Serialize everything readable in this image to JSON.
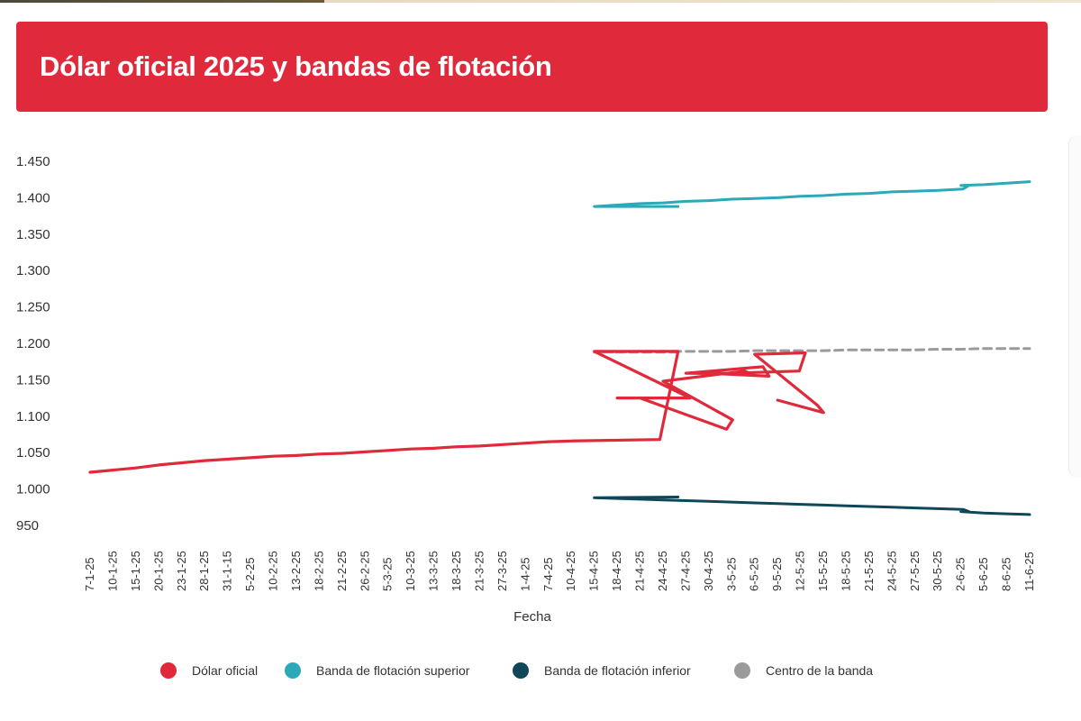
{
  "header": {
    "title": "Dólar oficial 2025 y bandas de flotación"
  },
  "chart_data": {
    "type": "line",
    "title": "Dólar oficial 2025 y bandas de flotación",
    "xlabel": "Fecha",
    "ylabel": "",
    "ylim": [
      950,
      1450
    ],
    "y_ticks": [
      "950",
      "1.000",
      "1.050",
      "1.100",
      "1.150",
      "1.200",
      "1.250",
      "1.300",
      "1.350",
      "1.400",
      "1.450"
    ],
    "x_ticks": [
      "7-1-25",
      "10-1-25",
      "15-1-25",
      "20-1-25",
      "23-1-25",
      "28-1-25",
      "31-1-15",
      "5-2-25",
      "10-2-25",
      "13-2-25",
      "18-2-25",
      "21-2-25",
      "26-2-25",
      "5-3-25",
      "10-3-25",
      "13-3-25",
      "18-3-25",
      "21-3-25",
      "27-3-25",
      "1-4-25",
      "7-4-25",
      "10-4-25",
      "15-4-25",
      "18-4-25",
      "21-4-25",
      "24-4-25",
      "27-4-25",
      "30-4-25",
      "3-5-25",
      "6-5-25",
      "9-5-25",
      "12-5-25",
      "15-5-25",
      "18-5-25",
      "21-5-25",
      "24-5-25",
      "27-5-25",
      "30-5-25",
      "2-6-25",
      "5-6-25",
      "8-6-25",
      "11-6-25"
    ],
    "grid": false,
    "legend_position": "bottom",
    "series": [
      {
        "name": "Dólar oficial",
        "color": "#e02a3c",
        "dashed": false,
        "points": [
          [
            "7-1-25",
            1023
          ],
          [
            "10-1-25",
            1026
          ],
          [
            "15-1-25",
            1029
          ],
          [
            "20-1-25",
            1033
          ],
          [
            "23-1-25",
            1036
          ],
          [
            "28-1-25",
            1039
          ],
          [
            "31-1-15",
            1041
          ],
          [
            "5-2-25",
            1043
          ],
          [
            "10-2-25",
            1045
          ],
          [
            "13-2-25",
            1046
          ],
          [
            "18-2-25",
            1048
          ],
          [
            "21-2-25",
            1049
          ],
          [
            "26-2-25",
            1051
          ],
          [
            "5-3-25",
            1053
          ],
          [
            "10-3-25",
            1055
          ],
          [
            "13-3-25",
            1056
          ],
          [
            "18-3-25",
            1058
          ],
          [
            "21-3-25",
            1059
          ],
          [
            "27-3-25",
            1061
          ],
          [
            "1-4-25",
            1063
          ],
          [
            "7-4-25",
            1065
          ],
          [
            "10-4-25",
            1066
          ],
          [
            "11-4-25",
            1068
          ],
          [
            "14-4-25",
            1189
          ],
          [
            "15-4-25",
            1189
          ],
          [
            "16-4-25",
            1125
          ],
          [
            "18-4-25",
            1125
          ],
          [
            "21-4-25",
            1125
          ],
          [
            "22-4-25",
            1082
          ],
          [
            "23-4-25",
            1095
          ],
          [
            "24-4-25",
            1148
          ],
          [
            "25-4-25",
            1162
          ],
          [
            "26-4-25",
            1158
          ],
          [
            "27-4-25",
            1159
          ],
          [
            "28-4-25",
            1168
          ],
          [
            "29-4-25",
            1155
          ],
          [
            "30-4-25",
            1159
          ],
          [
            "3-5-25",
            1159
          ],
          [
            "4-5-25",
            1162
          ],
          [
            "5-5-25",
            1187
          ],
          [
            "6-5-25",
            1185
          ],
          [
            "7-5-25",
            1115
          ],
          [
            "8-5-25",
            1105
          ],
          [
            "9-5-25",
            1122
          ]
        ]
      },
      {
        "name": "Banda de flotación superior",
        "color": "#2aa9b8",
        "dashed": false,
        "points": [
          [
            "14-4-25",
            1388
          ],
          [
            "15-4-25",
            1388
          ],
          [
            "18-4-25",
            1390
          ],
          [
            "21-4-25",
            1392
          ],
          [
            "24-4-25",
            1393
          ],
          [
            "27-4-25",
            1395
          ],
          [
            "30-4-25",
            1396
          ],
          [
            "3-5-25",
            1398
          ],
          [
            "6-5-25",
            1399
          ],
          [
            "9-5-25",
            1400
          ],
          [
            "12-5-25",
            1402
          ],
          [
            "15-5-25",
            1403
          ],
          [
            "18-5-25",
            1405
          ],
          [
            "21-5-25",
            1406
          ],
          [
            "24-5-25",
            1408
          ],
          [
            "27-5-25",
            1409
          ],
          [
            "30-5-25",
            1410
          ],
          [
            "31-5-25",
            1412
          ],
          [
            "1-6-25",
            1417
          ],
          [
            "2-6-25",
            1417
          ],
          [
            "5-6-25",
            1418
          ],
          [
            "8-6-25",
            1420
          ],
          [
            "11-6-25",
            1422
          ]
        ]
      },
      {
        "name": "Banda de flotación inferior",
        "color": "#0f4758",
        "dashed": false,
        "points": [
          [
            "14-4-25",
            989
          ],
          [
            "15-4-25",
            988
          ],
          [
            "18-4-25",
            987
          ],
          [
            "21-4-25",
            986
          ],
          [
            "24-4-25",
            985
          ],
          [
            "27-4-25",
            984
          ],
          [
            "30-4-25",
            983
          ],
          [
            "3-5-25",
            982
          ],
          [
            "6-5-25",
            981
          ],
          [
            "9-5-25",
            980
          ],
          [
            "12-5-25",
            979
          ],
          [
            "15-5-25",
            978
          ],
          [
            "18-5-25",
            977
          ],
          [
            "21-5-25",
            976
          ],
          [
            "24-5-25",
            975
          ],
          [
            "27-5-25",
            974
          ],
          [
            "30-5-25",
            973
          ],
          [
            "31-5-25",
            972
          ],
          [
            "1-6-25",
            969
          ],
          [
            "2-6-25",
            969
          ],
          [
            "5-6-25",
            967
          ],
          [
            "8-6-25",
            966
          ],
          [
            "11-6-25",
            965
          ]
        ]
      },
      {
        "name": "Centro de la banda",
        "color": "#9a9a9a",
        "dashed": true,
        "points": [
          [
            "14-4-25",
            1188
          ],
          [
            "15-4-25",
            1188
          ],
          [
            "18-4-25",
            1188
          ],
          [
            "21-4-25",
            1189
          ],
          [
            "24-4-25",
            1189
          ],
          [
            "27-4-25",
            1189
          ],
          [
            "30-4-25",
            1189
          ],
          [
            "3-5-25",
            1189
          ],
          [
            "6-5-25",
            1190
          ],
          [
            "9-5-25",
            1190
          ],
          [
            "12-5-25",
            1190
          ],
          [
            "15-5-25",
            1190
          ],
          [
            "18-5-25",
            1191
          ],
          [
            "21-5-25",
            1191
          ],
          [
            "24-5-25",
            1191
          ],
          [
            "27-5-25",
            1191
          ],
          [
            "30-5-25",
            1192
          ],
          [
            "2-6-25",
            1192
          ],
          [
            "5-6-25",
            1193
          ],
          [
            "8-6-25",
            1193
          ],
          [
            "11-6-25",
            1193
          ]
        ]
      }
    ]
  }
}
